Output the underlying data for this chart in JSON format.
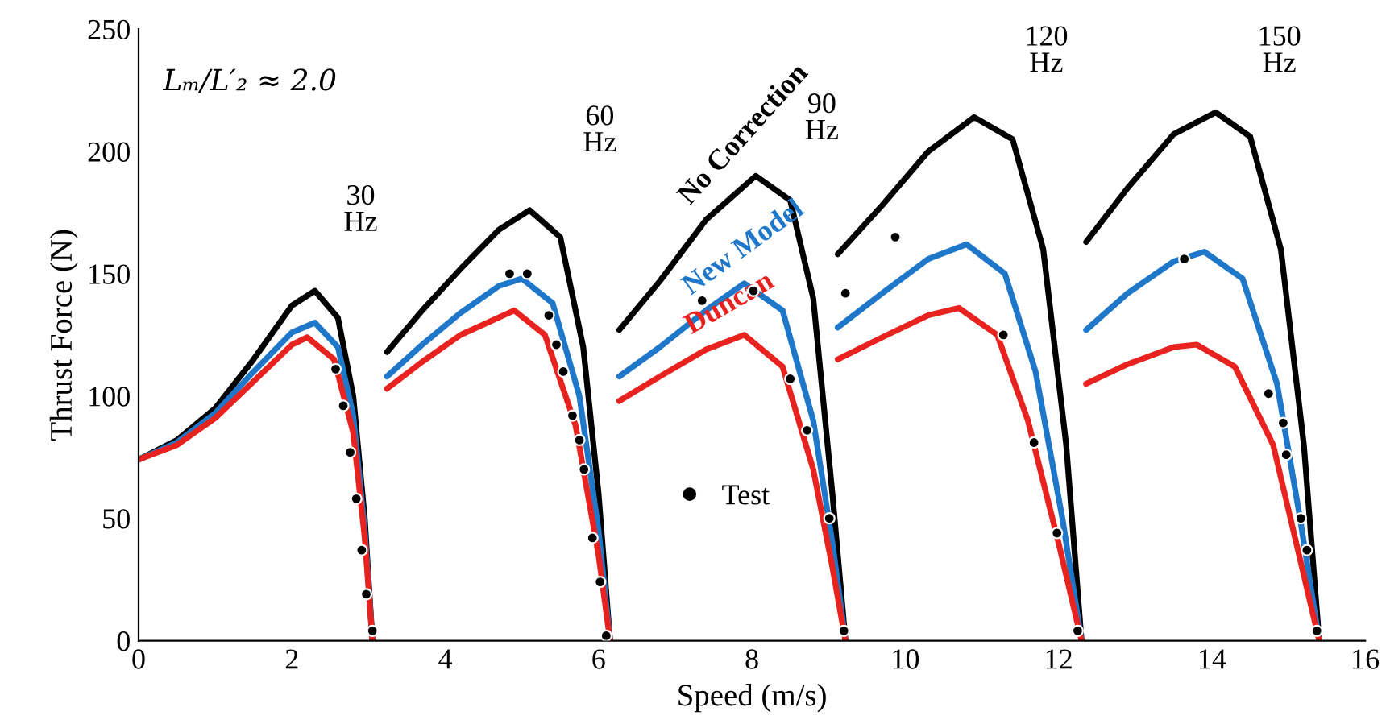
{
  "chart_data": {
    "type": "line",
    "xlabel": "Speed (m/s)",
    "ylabel": "Thrust Force (N)",
    "xlim": [
      0,
      16
    ],
    "ylim": [
      0,
      250
    ],
    "xticks": [
      0,
      2,
      4,
      6,
      8,
      10,
      12,
      14,
      16
    ],
    "yticks": [
      0,
      50,
      100,
      150,
      200,
      250
    ],
    "grid": false,
    "legend": "bottom",
    "marker": "none",
    "line_style": "solid",
    "annotations": [
      "Lₘ/L′₂ ≈ 2.0",
      "30\nHz",
      "60\nHz",
      "90\nHz",
      "120\nHz",
      "150\nHz"
    ],
    "series": [
      {
        "name": "No Correction",
        "color": "#000000",
        "x": [
          0,
          0.5,
          1,
          1.5,
          2,
          2.3,
          2.6,
          2.8,
          2.95,
          3.05,
          null,
          3.24,
          3.7,
          4.2,
          4.7,
          5.1,
          5.5,
          5.8,
          6.0,
          6.15,
          null,
          6.27,
          6.8,
          7.4,
          8.05,
          8.5,
          8.8,
          9.05,
          9.22,
          null,
          9.12,
          9.7,
          10.3,
          10.9,
          11.4,
          11.8,
          12.1,
          12.3,
          null,
          12.36,
          12.9,
          13.5,
          14.05,
          14.5,
          14.9,
          15.2,
          15.4
        ],
        "values": [
          74,
          82,
          95,
          115,
          137,
          143,
          132,
          100,
          50,
          0,
          null,
          118,
          135,
          152,
          168,
          176,
          165,
          120,
          60,
          0,
          null,
          127,
          147,
          172,
          190,
          180,
          140,
          60,
          0,
          null,
          158,
          178,
          200,
          214,
          205,
          160,
          80,
          0,
          null,
          163,
          185,
          207,
          216,
          206,
          160,
          80,
          0
        ]
      },
      {
        "name": "New Model",
        "color": "#1f77c9",
        "x": [
          0,
          0.5,
          1,
          1.5,
          2,
          2.3,
          2.6,
          2.8,
          2.95,
          3.05,
          null,
          3.24,
          3.7,
          4.2,
          4.7,
          5.0,
          5.4,
          5.75,
          6.0,
          6.15,
          null,
          6.27,
          6.8,
          7.4,
          7.9,
          8.4,
          8.8,
          9.05,
          9.22,
          null,
          9.12,
          9.7,
          10.3,
          10.8,
          11.3,
          11.7,
          12.05,
          12.3,
          null,
          12.36,
          12.9,
          13.5,
          13.9,
          14.4,
          14.85,
          15.15,
          15.4
        ],
        "values": [
          74,
          81,
          93,
          110,
          126,
          130,
          120,
          92,
          45,
          0,
          null,
          108,
          121,
          134,
          145,
          148,
          138,
          100,
          45,
          0,
          null,
          108,
          120,
          135,
          146,
          135,
          90,
          40,
          0,
          null,
          128,
          142,
          156,
          162,
          150,
          110,
          50,
          0,
          null,
          127,
          142,
          155,
          159,
          148,
          105,
          50,
          0
        ]
      },
      {
        "name": "Duncan",
        "color": "#e8231f",
        "x": [
          0,
          0.5,
          1,
          1.5,
          2,
          2.2,
          2.55,
          2.8,
          2.95,
          3.05,
          null,
          3.24,
          3.7,
          4.2,
          4.9,
          5.3,
          5.7,
          6.0,
          6.15,
          null,
          6.27,
          6.8,
          7.4,
          7.9,
          8.4,
          8.8,
          9.05,
          9.22,
          null,
          9.12,
          9.7,
          10.3,
          10.7,
          11.2,
          11.6,
          12.0,
          12.3,
          null,
          12.36,
          12.9,
          13.5,
          13.8,
          14.3,
          14.8,
          15.1,
          15.4
        ],
        "values": [
          74,
          80,
          91,
          106,
          121,
          124,
          115,
          85,
          42,
          0,
          null,
          103,
          114,
          125,
          135,
          125,
          88,
          35,
          0,
          null,
          98,
          108,
          119,
          125,
          112,
          70,
          30,
          0,
          null,
          115,
          124,
          133,
          136,
          125,
          90,
          40,
          0,
          null,
          105,
          113,
          120,
          121,
          112,
          80,
          40,
          0
        ]
      },
      {
        "name": "Test",
        "type": "scatter",
        "marker": "circle",
        "color": "#000000",
        "x": [
          2.57,
          2.67,
          2.76,
          2.84,
          2.91,
          2.97,
          3.05,
          4.84,
          5.07,
          5.35,
          5.45,
          5.54,
          5.66,
          5.75,
          5.81,
          5.92,
          6.02,
          6.1,
          7.35,
          8.02,
          8.5,
          8.72,
          9.01,
          9.2,
          9.22,
          9.87,
          11.28,
          11.68,
          11.98,
          12.25,
          13.64,
          14.74,
          14.93,
          14.97,
          15.16,
          15.24,
          15.37
        ],
        "values": [
          111,
          96,
          77,
          58,
          37,
          19,
          4,
          150,
          150,
          133,
          121,
          110,
          92,
          82,
          70,
          42,
          24,
          2,
          139,
          143,
          107,
          86,
          50,
          4,
          142,
          165,
          125,
          81,
          44,
          4,
          156,
          101,
          89,
          76,
          50,
          37,
          4
        ]
      }
    ]
  }
}
